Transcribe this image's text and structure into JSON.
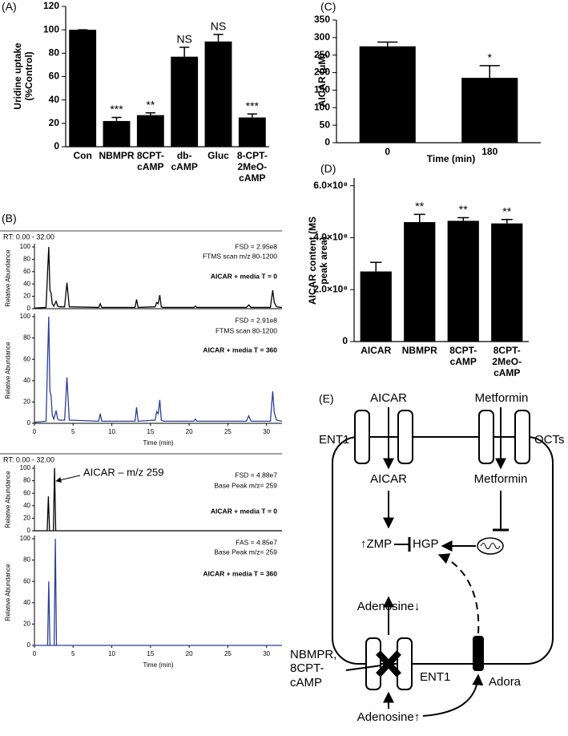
{
  "chart_data": [
    {
      "type": "bar",
      "panel_label": "(A)",
      "ylabel": "Uridine uptake (%Control)",
      "categories": [
        "Con",
        "NBMPR",
        "8CPT-\ncAMP",
        "db-\ncAMP",
        "Gluc",
        "8-CPT-\n2MeO-\ncAMP"
      ],
      "values": [
        100,
        22,
        27,
        77,
        90,
        25
      ],
      "errors": [
        0,
        3,
        2,
        8,
        6,
        3
      ],
      "annotations": [
        null,
        "***",
        "**",
        "NS",
        "NS",
        "***"
      ],
      "color": "#000000",
      "ylim": [
        0,
        120
      ],
      "yticks": [
        0,
        20,
        40,
        60,
        80,
        100,
        120
      ]
    },
    {
      "type": "bar",
      "panel_label": "(C)",
      "ylabel": "AICAR (μM)",
      "xlabel": "Time (min)",
      "categories": [
        "0",
        "180"
      ],
      "values": [
        275,
        185
      ],
      "errors": [
        12,
        35
      ],
      "annotations": [
        null,
        "*"
      ],
      "color": "#000000",
      "ylim": [
        0,
        350
      ],
      "yticks": [
        0,
        50,
        100,
        150,
        200,
        250,
        300,
        350
      ]
    },
    {
      "type": "bar",
      "panel_label": "(D)",
      "ylabel": "AICAR content (MS peak area)",
      "categories": [
        "AICAR",
        "NBMPR",
        "8CPT-\ncAMP",
        "8CPT-\n2MeO-\ncAMP"
      ],
      "values": [
        270000000,
        460000000,
        465000000,
        455000000
      ],
      "errors": [
        35000000,
        30000000,
        12000000,
        15000000
      ],
      "annotations": [
        null,
        "**",
        "**",
        "**"
      ],
      "color": "#000000",
      "ylim": [
        0,
        630000000
      ],
      "yticks": [
        0,
        {
          "value": 200000000,
          "label": "2.0×10⁸"
        },
        {
          "value": 400000000,
          "label": "4.0×10⁸"
        },
        {
          "value": 600000000,
          "label": "6.0×10⁸"
        }
      ]
    },
    {
      "type": "line",
      "panel_label": "(B)",
      "range_label": "RT: 0.00 - 32.00",
      "ylabel": "Relative Abundance",
      "annotations": [
        "FSD = 2.95e8",
        "FTMS scan m/z 80-1200",
        "AICAR + media T = 0"
      ],
      "x": [
        0,
        1.5,
        1.7,
        1.85,
        2.0,
        2.15,
        2.3,
        2.5,
        2.8,
        3.0,
        3.2,
        3.9,
        4.2,
        4.5,
        8.3,
        8.5,
        8.7,
        13.0,
        13.2,
        13.4,
        15.6,
        15.8,
        16.0,
        16.2,
        16.4,
        16.7,
        20.6,
        20.8,
        21.0,
        27.4,
        27.7,
        28.0,
        30.5,
        30.8,
        31.0,
        31.3,
        32
      ],
      "series": [
        {
          "color": "#000000",
          "values": [
            1,
            2,
            60,
            100,
            30,
            25,
            8,
            4,
            12,
            4,
            3,
            3,
            42,
            3,
            2,
            8,
            2,
            2,
            15,
            2,
            3,
            10,
            8,
            22,
            3,
            2,
            2,
            4,
            2,
            2,
            6,
            2,
            2,
            30,
            10,
            3,
            2
          ]
        }
      ],
      "xlim": [
        0,
        32
      ],
      "ylim": [
        0,
        100
      ],
      "yticks": [
        0,
        20,
        40,
        60,
        80,
        100
      ]
    },
    {
      "type": "line",
      "ylabel": "Relative Abundance",
      "xlabel": "Time (min)",
      "annotations": [
        "FSD = 2.91e8",
        "FTMS scan 80-1200",
        "AICAR + media  T = 360"
      ],
      "x": [
        0,
        1.5,
        1.7,
        1.85,
        2.0,
        2.15,
        2.3,
        2.5,
        2.8,
        3.0,
        3.2,
        3.9,
        4.2,
        4.5,
        8.3,
        8.5,
        8.7,
        13.0,
        13.2,
        13.4,
        15.6,
        15.8,
        16.0,
        16.2,
        16.4,
        16.7,
        20.6,
        20.8,
        21.0,
        27.4,
        27.7,
        28.0,
        30.5,
        30.8,
        31.0,
        31.3,
        32
      ],
      "series": [
        {
          "color": "#2b3f9a",
          "values": [
            1,
            2,
            60,
            100,
            30,
            26,
            8,
            4,
            12,
            4,
            3,
            3,
            43,
            3,
            2,
            9,
            2,
            2,
            15,
            2,
            3,
            11,
            9,
            22,
            3,
            2,
            2,
            4,
            2,
            2,
            7,
            2,
            2,
            30,
            10,
            3,
            2
          ]
        }
      ],
      "xlim": [
        0,
        32
      ],
      "ylim": [
        0,
        100
      ],
      "xticks": [
        0,
        5,
        10,
        15,
        20,
        25,
        30
      ],
      "yticks": [
        0,
        20,
        40,
        60,
        80,
        100
      ]
    },
    {
      "type": "line",
      "range_label": "RT: 0.00 - 32.00",
      "ylabel": "Relative Abundance",
      "annotations": [
        "FSD = 4.88e7",
        "Base Peak m/z= 259",
        "AICAR + media T = 0"
      ],
      "callout": "AICAR – m/z 259",
      "x": [
        0,
        1.65,
        1.8,
        1.95,
        2.45,
        2.6,
        2.75,
        32
      ],
      "series": [
        {
          "color": "#000000",
          "values": [
            0,
            0,
            55,
            0,
            0,
            100,
            0,
            0
          ]
        }
      ],
      "xlim": [
        0,
        32
      ],
      "ylim": [
        0,
        100
      ],
      "yticks": [
        0,
        20,
        40,
        60,
        80,
        100
      ]
    },
    {
      "type": "line",
      "ylabel": "Relative Abundance",
      "xlabel": "Time (min)",
      "annotations": [
        "FAS = 4.85e7",
        "Base Peak m/z= 259",
        "AICAR + media T = 360"
      ],
      "x": [
        0,
        1.7,
        1.85,
        2.0,
        2.55,
        2.7,
        2.85,
        32
      ],
      "series": [
        {
          "color": "#2b3f9a",
          "values": [
            0,
            0,
            60,
            0,
            0,
            100,
            0,
            0
          ]
        }
      ],
      "xlim": [
        0,
        32
      ],
      "ylim": [
        0,
        100
      ],
      "xticks": [
        0,
        5,
        10,
        15,
        20,
        25,
        30
      ],
      "yticks": [
        0,
        20,
        40,
        60,
        80,
        100
      ]
    }
  ],
  "diagram": {
    "labels": [
      "(E)",
      "AICAR",
      "Metformin",
      "ENT1",
      "OCTs",
      "AICAR",
      "Metformin",
      "↑ZMP",
      "HGP",
      "Adenosine↓",
      "NBMPR,\n8CPT-\ncAMP",
      "ENT1",
      "Adora",
      "Adenosine↑"
    ]
  }
}
